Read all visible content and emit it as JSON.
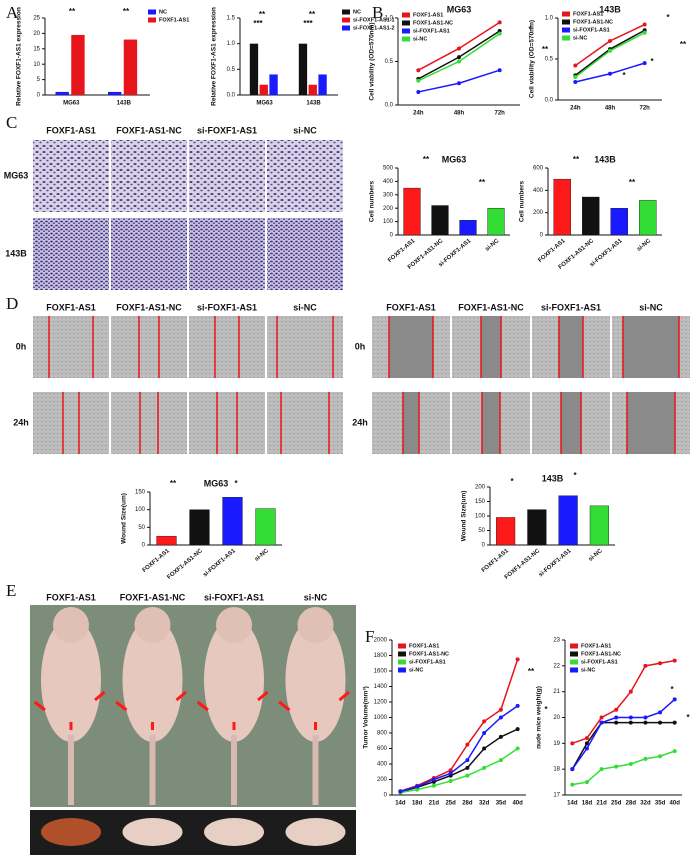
{
  "panel_labels": [
    "A",
    "B",
    "C",
    "D",
    "E",
    "F"
  ],
  "panel_C": {
    "columns": [
      "FOXF1-AS1",
      "FOXF1-AS1-NC",
      "si-FOXF1-AS1",
      "si-NC"
    ],
    "rows": [
      "MG63",
      "143B"
    ]
  },
  "panel_D": {
    "columns": [
      "FOXF1-AS1",
      "FOXF1-AS1-NC",
      "si-FOXF1-AS1",
      "si-NC"
    ],
    "rows": [
      "0h",
      "24h"
    ]
  },
  "panel_E": {
    "columns": [
      "FOXF1-AS1",
      "FOXF1-AS1-NC",
      "si-FOXF1-AS1",
      "si-NC"
    ]
  },
  "chart_data": [
    {
      "type": "bar",
      "ylabel": "Relative FOXF1-AS1 expression",
      "categories": [
        "MG63",
        "143B"
      ],
      "series": [
        {
          "name": "NC",
          "color": "#1a1aff",
          "values": [
            1,
            1
          ]
        },
        {
          "name": "FOXF1-AS1",
          "color": "#e8141c",
          "values": [
            19.5,
            18
          ]
        }
      ],
      "ylim": [
        0,
        25
      ],
      "yticks": [
        0,
        5,
        10,
        15,
        20,
        25
      ],
      "annotations": [
        "**",
        "**"
      ]
    },
    {
      "type": "bar",
      "ylabel": "Relative FOXF1-AS1 expression",
      "categories": [
        "MG63",
        "143B"
      ],
      "series": [
        {
          "name": "NC",
          "color": "#111111",
          "values": [
            1,
            1
          ]
        },
        {
          "name": "si-FOXF1-AS1-1",
          "color": "#e8141c",
          "values": [
            0.2,
            0.2
          ]
        },
        {
          "name": "si-FOXF1-AS1-2",
          "color": "#1a1aff",
          "values": [
            0.4,
            0.4
          ]
        }
      ],
      "ylim": [
        0,
        1.5
      ],
      "yticks": [
        {
          "value": 0,
          "label": "0.0"
        },
        0.5,
        {
          "value": 1,
          "label": "1.0"
        },
        1.5
      ],
      "annotations": [
        "**",
        "***",
        "**",
        "***"
      ]
    },
    {
      "type": "line",
      "title": "MG63",
      "ylabel": "Cell viability (OD=570nm)",
      "categories": [
        "24h",
        "48h",
        "72h"
      ],
      "series": [
        {
          "name": "FOXF1-AS1",
          "color": "#e8141c",
          "values": [
            0.4,
            0.65,
            0.95
          ]
        },
        {
          "name": "FOXF1-AS1-NC",
          "color": "#111111",
          "values": [
            0.3,
            0.55,
            0.85
          ]
        },
        {
          "name": "si-FOXF1-AS1",
          "color": "#1a1aff",
          "values": [
            0.15,
            0.25,
            0.4
          ]
        },
        {
          "name": "si-NC",
          "color": "#33dd33",
          "values": [
            0.28,
            0.5,
            0.82
          ]
        }
      ],
      "ylim": [
        0,
        1
      ],
      "yticks": [
        {
          "value": 0,
          "label": "0.0"
        },
        0.5,
        {
          "value": 1,
          "label": "1.0"
        }
      ],
      "annotations": [
        "*",
        "**"
      ]
    },
    {
      "type": "line",
      "title": "143B",
      "ylabel": "Cell viability (OD=570nm)",
      "categories": [
        "24h",
        "48h",
        "72h"
      ],
      "series": [
        {
          "name": "FOXF1-AS1",
          "color": "#e8141c",
          "values": [
            0.42,
            0.72,
            0.92
          ]
        },
        {
          "name": "FOXF1-AS1-NC",
          "color": "#111111",
          "values": [
            0.3,
            0.62,
            0.85
          ]
        },
        {
          "name": "si-FOXF1-AS1",
          "color": "#1a1aff",
          "values": [
            0.22,
            0.32,
            0.45
          ]
        },
        {
          "name": "si-NC",
          "color": "#33dd33",
          "values": [
            0.28,
            0.6,
            0.82
          ]
        }
      ],
      "ylim": [
        0,
        1
      ],
      "yticks": [
        {
          "value": 0,
          "label": "0.0"
        },
        0.5,
        {
          "value": 1,
          "label": "1.0"
        }
      ],
      "annotations": [
        "*",
        "**",
        "*",
        "*"
      ]
    },
    {
      "type": "bar",
      "title": "MG63",
      "ylabel": "Cell numbers",
      "categories": [
        "FOXF1-AS1",
        "FOXF1-AS1-NC",
        "si-FOXF1-AS1",
        "si-NC"
      ],
      "values": [
        350,
        220,
        110,
        200
      ],
      "colors": [
        "#ff1a1a",
        "#111111",
        "#1a1aff",
        "#33dd33"
      ],
      "ylim": [
        0,
        500
      ],
      "yticks": [
        0,
        100,
        200,
        300,
        400,
        500
      ],
      "annotations": [
        "**",
        "**"
      ]
    },
    {
      "type": "bar",
      "title": "143B",
      "ylabel": "Cell numbers",
      "categories": [
        "FOXF1-AS1",
        "FOXF1-AS1-NC",
        "si-FOXF1-AS1",
        "si-NC"
      ],
      "values": [
        500,
        340,
        240,
        310
      ],
      "colors": [
        "#ff1a1a",
        "#111111",
        "#1a1aff",
        "#33dd33"
      ],
      "ylim": [
        0,
        600
      ],
      "yticks": [
        0,
        200,
        400,
        600
      ],
      "annotations": [
        "**",
        "**"
      ]
    },
    {
      "type": "bar",
      "title": "MG63",
      "ylabel": "Wound Size(um)",
      "categories": [
        "FOXF1-AS1",
        "FOXF1-AS1-NC",
        "si-FOXF1-AS1",
        "si-NC"
      ],
      "values": [
        25,
        100,
        135,
        103
      ],
      "colors": [
        "#ff1a1a",
        "#111111",
        "#1a1aff",
        "#33dd33"
      ],
      "ylim": [
        0,
        150
      ],
      "yticks": [
        0,
        50,
        100,
        150
      ],
      "annotations": [
        "**",
        "*"
      ]
    },
    {
      "type": "bar",
      "title": "143B",
      "ylabel": "Wound Size(um)",
      "categories": [
        "FOXF1-AS1",
        "FOXF1-AS1-NC",
        "si-FOXF1-AS1",
        "si-NC"
      ],
      "values": [
        95,
        122,
        170,
        135
      ],
      "colors": [
        "#ff1a1a",
        "#111111",
        "#1a1aff",
        "#33dd33"
      ],
      "ylim": [
        0,
        200
      ],
      "yticks": [
        0,
        50,
        100,
        150,
        200
      ],
      "annotations": [
        "*",
        "*"
      ]
    },
    {
      "type": "line",
      "ylabel": "Tumor Volume(mm³)",
      "categories": [
        "14d",
        "18d",
        "21d",
        "25d",
        "28d",
        "32d",
        "35d",
        "40d"
      ],
      "series": [
        {
          "name": "FOXF1-AS1",
          "color": "#e8141c",
          "values": [
            50,
            120,
            220,
            320,
            650,
            950,
            1100,
            1750
          ]
        },
        {
          "name": "FOXF1-AS1-NC",
          "color": "#111111",
          "values": [
            40,
            100,
            170,
            250,
            350,
            600,
            750,
            850
          ]
        },
        {
          "name": "si-FOXF1-AS1",
          "color": "#33dd33",
          "values": [
            30,
            70,
            120,
            180,
            250,
            350,
            450,
            600
          ]
        },
        {
          "name": "si-NC",
          "color": "#1a1aff",
          "values": [
            45,
            110,
            200,
            280,
            450,
            800,
            1000,
            1150
          ]
        }
      ],
      "ylim": [
        0,
        2000
      ],
      "yticks": [
        0,
        200,
        400,
        600,
        800,
        1000,
        1200,
        1400,
        1600,
        1800,
        2000
      ],
      "annotations": [
        "**",
        "*"
      ]
    },
    {
      "type": "line",
      "ylabel": "nude mice weight(g)",
      "categories": [
        "14d",
        "18d",
        "21d",
        "25d",
        "28d",
        "32d",
        "35d",
        "40d"
      ],
      "series": [
        {
          "name": "FOXF1-AS1",
          "color": "#e8141c",
          "values": [
            19,
            19.2,
            20,
            20.3,
            21,
            22,
            22.1,
            22.2
          ]
        },
        {
          "name": "FOXF1-AS1-NC",
          "color": "#111111",
          "values": [
            18,
            19,
            19.8,
            19.8,
            19.8,
            19.8,
            19.8,
            19.8
          ]
        },
        {
          "name": "si-FOXF1-AS1",
          "color": "#33dd33",
          "values": [
            17.4,
            17.5,
            18,
            18.1,
            18.2,
            18.4,
            18.5,
            18.7
          ]
        },
        {
          "name": "si-NC",
          "color": "#1a1aff",
          "values": [
            18,
            18.8,
            19.8,
            20,
            20,
            20,
            20.2,
            20.7
          ]
        }
      ],
      "ylim": [
        17,
        23
      ],
      "yticks": [
        17,
        18,
        19,
        20,
        21,
        22,
        23
      ],
      "annotations": [
        "*",
        "*"
      ]
    }
  ]
}
